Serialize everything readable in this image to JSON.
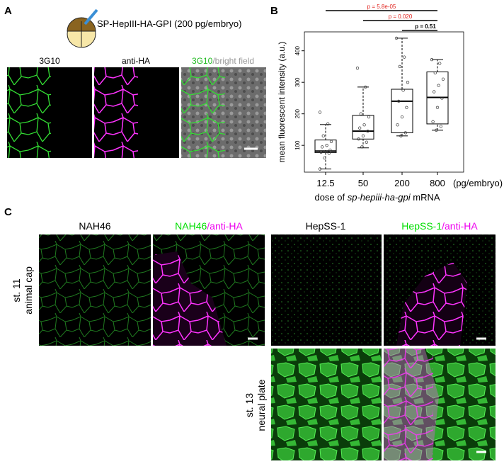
{
  "panel_a": {
    "label": "A",
    "construct": "SP-HepIII-HA-GPI (200 pg/embryo)",
    "image_titles": [
      [
        "3G10"
      ],
      [
        "anti-HA"
      ],
      [
        "3G10",
        "/bright field"
      ]
    ]
  },
  "panel_b": {
    "label": "B"
  },
  "chart_data": {
    "type": "box",
    "categories": [
      "12.5",
      "50",
      "200",
      "800"
    ],
    "x_unit": "(pg/embryo)",
    "xlabel_parts": [
      "dose of ",
      "sp-hepiii-ha-gpi",
      " mRNA"
    ],
    "ylabel": "mean fluorescent intensity (a.u.)",
    "ylim": [
      15,
      460
    ],
    "yticks": [
      100,
      200,
      300,
      400
    ],
    "whisker_low": [
      25,
      92,
      130,
      148
    ],
    "q1": [
      77,
      120,
      140,
      168
    ],
    "median": [
      82,
      145,
      240,
      252
    ],
    "q3": [
      117,
      195,
      278,
      333
    ],
    "whisker_high": [
      166,
      285,
      440,
      372
    ],
    "points": [
      [
        205,
        168,
        130,
        112,
        100,
        95,
        85,
        80,
        78,
        75,
        60,
        25
      ],
      [
        345,
        285,
        200,
        190,
        165,
        155,
        145,
        130,
        120,
        110,
        95
      ],
      [
        440,
        380,
        350,
        300,
        275,
        240,
        220,
        190,
        165,
        140,
        130
      ],
      [
        372,
        360,
        330,
        310,
        290,
        270,
        250,
        220,
        175,
        160,
        148
      ]
    ],
    "comparisons": [
      {
        "label": "p = 5.8e-05",
        "color": "#e0201b"
      },
      {
        "label": "p = 0.020",
        "color": "#e0201b"
      },
      {
        "label": "p = 0.51",
        "color": "#000000"
      }
    ]
  },
  "panel_c": {
    "label": "C",
    "column_titles": [
      [
        "NAH46"
      ],
      [
        "NAH46",
        "/anti-HA"
      ],
      [
        "HepSS-1"
      ],
      [
        "HepSS-1",
        "/anti-HA"
      ]
    ],
    "row_labels": [
      [
        "st. 11",
        "animal cap"
      ],
      [
        "st. 13",
        "neural plate"
      ]
    ]
  }
}
